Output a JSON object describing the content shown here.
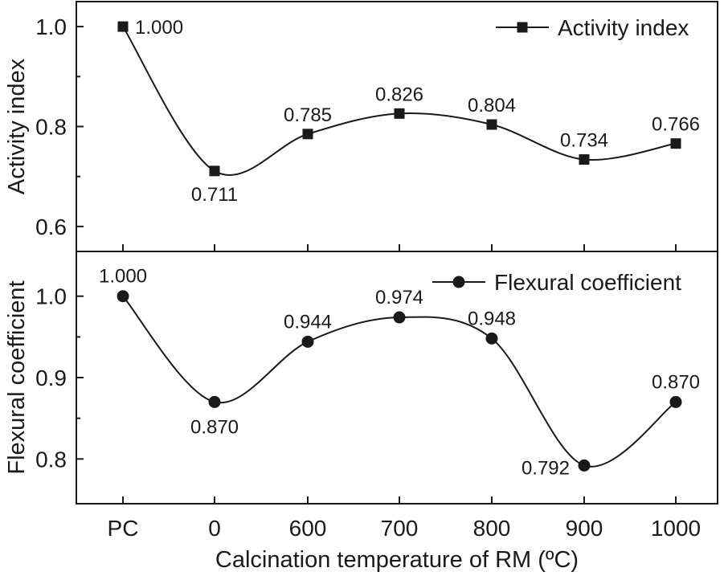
{
  "chart_data": [
    {
      "type": "line",
      "title": "",
      "xlabel": "Calcination temperature of RM (ºC)",
      "ylabel": "Activity index",
      "categories": [
        "PC",
        "0",
        "600",
        "700",
        "800",
        "900",
        "1000"
      ],
      "series": [
        {
          "name": "Activity index",
          "values": [
            1.0,
            0.711,
            0.785,
            0.826,
            0.804,
            0.734,
            0.766
          ],
          "labels": [
            "1.000",
            "0.711",
            "0.785",
            "0.826",
            "0.804",
            "0.734",
            "0.766"
          ],
          "marker": "square",
          "color": "#1a1a1a"
        }
      ],
      "ylim": [
        0.55,
        1.05
      ],
      "yticks": [
        0.6,
        0.8,
        1.0
      ],
      "ytick_labels": [
        "0.6",
        "0.8",
        "1.0"
      ],
      "legend": "top-right",
      "grid": false
    },
    {
      "type": "line",
      "title": "",
      "xlabel": "Calcination temperature of RM (ºC)",
      "ylabel": "Flexural coefficient",
      "categories": [
        "PC",
        "0",
        "600",
        "700",
        "800",
        "900",
        "1000"
      ],
      "series": [
        {
          "name": "Flexural coefficient",
          "values": [
            1.0,
            0.87,
            0.944,
            0.974,
            0.948,
            0.792,
            0.87
          ],
          "labels": [
            "1.000",
            "0.870",
            "0.944",
            "0.974",
            "0.948",
            "0.792",
            "0.870"
          ],
          "marker": "circle",
          "color": "#1a1a1a"
        }
      ],
      "ylim": [
        0.745,
        1.055
      ],
      "yticks": [
        0.8,
        0.9,
        1.0
      ],
      "ytick_labels": [
        "0.8",
        "0.9",
        "1.0"
      ],
      "legend": "top-right",
      "grid": false
    }
  ],
  "shared_x": {
    "categories": [
      "PC",
      "0",
      "600",
      "700",
      "800",
      "900",
      "1000"
    ],
    "xlabel": "Calcination temperature of RM (ºC)"
  },
  "colors": {
    "ink": "#1a1a1a",
    "background": "#ffffff"
  }
}
